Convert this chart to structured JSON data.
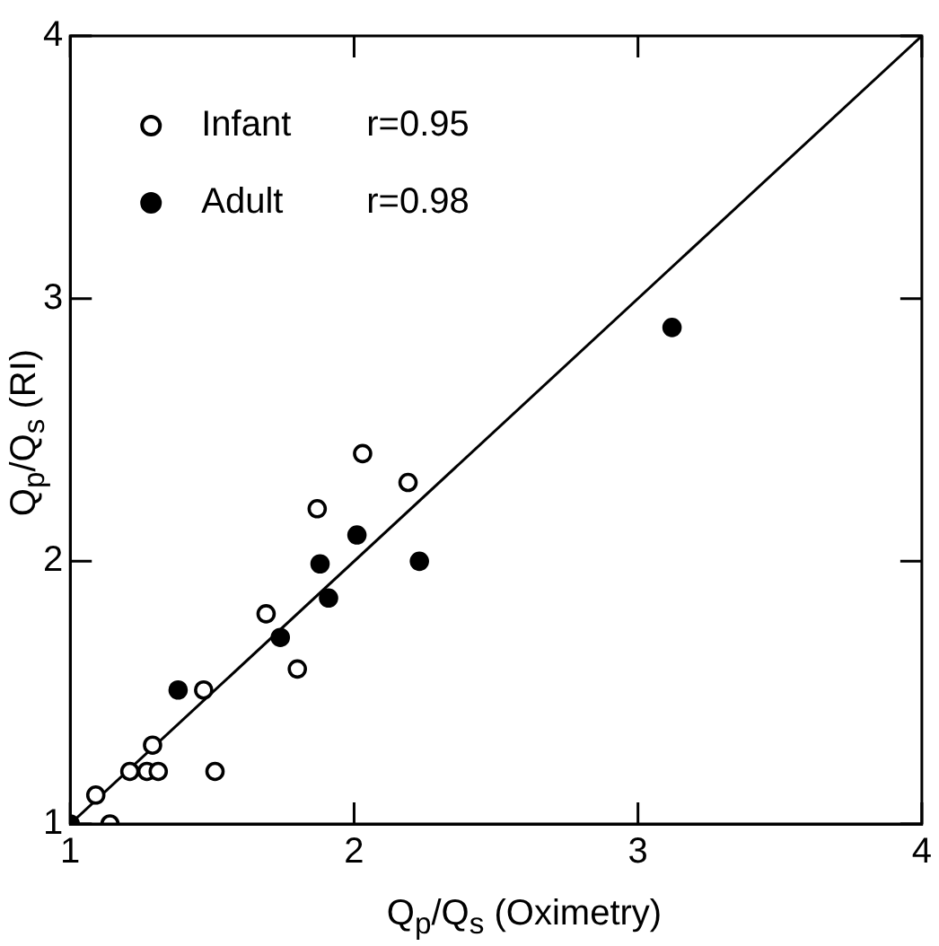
{
  "chart_data": {
    "type": "scatter",
    "xlabel": "Q$_{p}$/Q$_{s}$ (Oximetry)",
    "ylabel": "Q$_{p}$/Q$_{s}$ (RI)",
    "xlim": [
      1,
      4
    ],
    "ylim": [
      1,
      4
    ],
    "xticks": [
      1,
      2,
      3,
      4
    ],
    "yticks": [
      1,
      2,
      3,
      4
    ],
    "grid": false,
    "legend": "top left",
    "marker": "circle",
    "annotations": [
      "r=0.95",
      "r=0.98"
    ],
    "series": [
      {
        "name": "Infant",
        "color": "#000000",
        "x": [
          1.09,
          1.14,
          1.21,
          1.27,
          1.31,
          1.29,
          1.51,
          1.47,
          1.69,
          1.8,
          1.87,
          2.03,
          2.19
        ],
        "values": [
          1.11,
          1.0,
          1.2,
          1.2,
          1.2,
          1.3,
          1.2,
          1.51,
          1.8,
          1.59,
          2.2,
          2.41,
          2.3
        ]
      },
      {
        "name": "Adult",
        "color": "#000000",
        "x": [
          1.0,
          1.38,
          1.74,
          1.91,
          1.88,
          2.01,
          2.23,
          3.12
        ],
        "values": [
          1.0,
          1.51,
          1.71,
          1.86,
          1.99,
          2.1,
          2.0,
          2.89
        ]
      },
      {
        "type": "line",
        "color": "#000000",
        "x": [
          1,
          4
        ],
        "values": [
          1,
          4
        ],
        "marker": "none",
        "line_style": "solid"
      }
    ]
  }
}
